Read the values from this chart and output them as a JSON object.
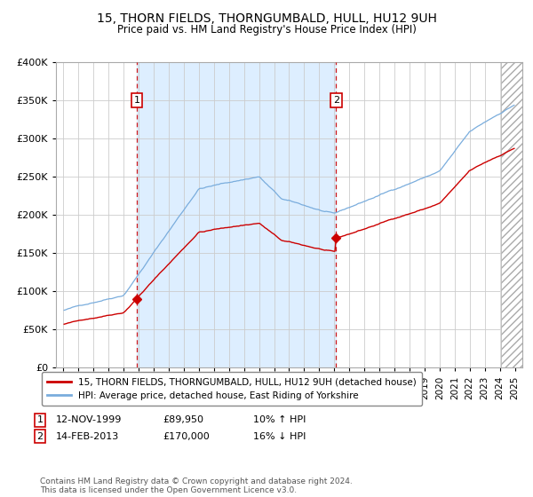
{
  "title": "15, THORN FIELDS, THORNGUMBALD, HULL, HU12 9UH",
  "subtitle": "Price paid vs. HM Land Registry's House Price Index (HPI)",
  "sale1_date": "12-NOV-1999",
  "sale1_price": 89950,
  "sale1_year": 1999.87,
  "sale2_date": "14-FEB-2013",
  "sale2_price": 170000,
  "sale2_year": 2013.12,
  "legend_line1": "15, THORN FIELDS, THORNGUMBALD, HULL, HU12 9UH (detached house)",
  "legend_line2": "HPI: Average price, detached house, East Riding of Yorkshire",
  "footnote": "Contains HM Land Registry data © Crown copyright and database right 2024.\nThis data is licensed under the Open Government Licence v3.0.",
  "ylim": [
    0,
    400000
  ],
  "xlim_start": 1994.5,
  "xlim_end": 2025.5,
  "red_color": "#cc0000",
  "blue_color": "#7aaddd",
  "shade_color": "#ddeeff",
  "hatch_color": "#cccccc",
  "plot_bg": "#f8f8f8",
  "title_fontsize": 10,
  "subtitle_fontsize": 8.5
}
